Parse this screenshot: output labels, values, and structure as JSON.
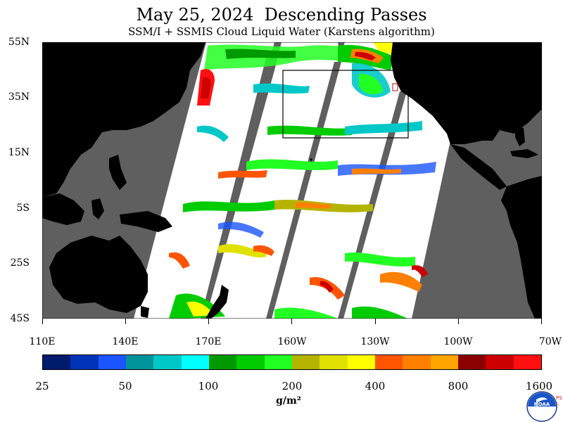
{
  "title": "May 25, 2024  Descending Passes",
  "subtitle": "SSM/I + SSMIS Cloud Liquid Water (Karstens algorithm)",
  "map": {
    "lat_labels": [
      "55N",
      "35N",
      "15N",
      "5S",
      "25S",
      "45S"
    ],
    "lon_labels": [
      "110E",
      "140E",
      "170E",
      "160W",
      "130W",
      "100W",
      "70W"
    ],
    "colors": {
      "land": "#000000",
      "no_data": "#5f5f5f",
      "clear": "#ffffff"
    },
    "annotations": [
      "outlined-rectangle-region"
    ]
  },
  "colorbar": {
    "colors": [
      "#001a6e",
      "#0033b8",
      "#1a55ff",
      "#00949a",
      "#00c8c8",
      "#00ffff",
      "#009a00",
      "#00cc00",
      "#22ff22",
      "#b4b400",
      "#e1e100",
      "#ffff00",
      "#ff5500",
      "#ff8000",
      "#ffa500",
      "#8b0000",
      "#cc0000",
      "#ff1010"
    ],
    "labels": [
      "25",
      "50",
      "100",
      "200",
      "400",
      "800",
      "1600"
    ],
    "units": "g/m²"
  },
  "logo": {
    "name": "NOAA",
    "side_text": "PSL"
  }
}
